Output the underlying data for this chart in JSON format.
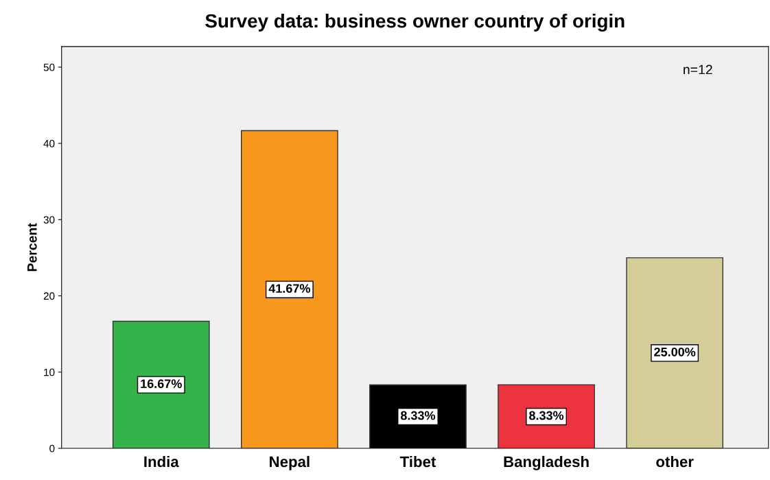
{
  "chart_data": {
    "type": "bar",
    "title": "Survey data: business owner country of origin",
    "ylabel": "Percent",
    "categories": [
      "India",
      "Nepal",
      "Tibet",
      "Bangladesh",
      "other"
    ],
    "values": [
      16.67,
      41.67,
      8.33,
      8.33,
      25.0
    ],
    "colors": [
      "#33b34a",
      "#f7981d",
      "#000000",
      "#ee3340",
      "#d4cd98"
    ],
    "value_labels": [
      "16.67%",
      "41.67%",
      "8.33%",
      "8.33%",
      "25.00%"
    ],
    "annotations": [
      "n=12"
    ],
    "ylim": [
      0,
      52.7
    ],
    "yticks": [
      0,
      10,
      20,
      30,
      40,
      50
    ],
    "grid": false,
    "legend": false
  }
}
